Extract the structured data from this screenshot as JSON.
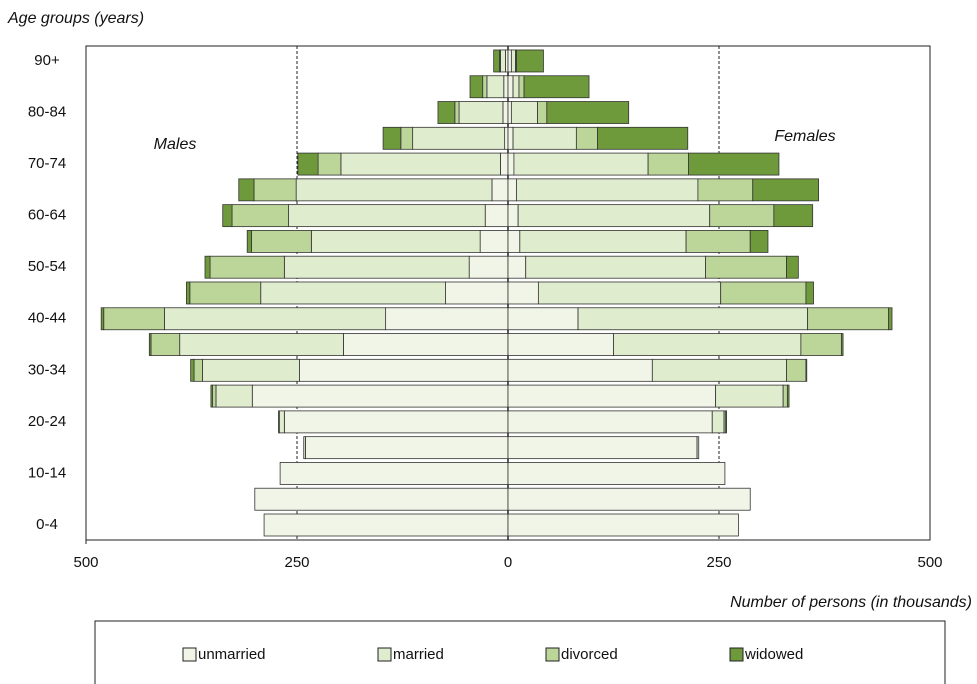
{
  "chart_data": {
    "type": "pyramid",
    "y_axis_label": "Age groups (years)",
    "x_axis_label": "Number of persons (in thousands)",
    "left_label": "Males",
    "right_label": "Females",
    "categories": [
      "0-4",
      null,
      "10-14",
      null,
      "20-24",
      null,
      "30-34",
      null,
      "40-44",
      null,
      "50-54",
      null,
      "60-64",
      null,
      "70-74",
      null,
      "80-84",
      null,
      "90+"
    ],
    "xlim": [
      -500,
      500
    ],
    "xticks": [
      {
        "value": -500,
        "label": "500"
      },
      {
        "value": -250,
        "label": "250"
      },
      0,
      250,
      500
    ],
    "grid": true,
    "series": [
      {
        "name": "unmarried",
        "color": "#f1f5e7",
        "males": [
          289,
          300,
          270,
          240,
          265,
          303,
          247,
          195,
          145,
          74,
          46,
          33,
          27,
          19,
          9,
          4,
          6,
          5,
          3
        ],
        "females": [
          273,
          287,
          257,
          224,
          242,
          246,
          171,
          125,
          83,
          36,
          21,
          14,
          12,
          10,
          7,
          6,
          4,
          6,
          4
        ]
      },
      {
        "name": "married",
        "color": "#e0ecce",
        "males": [
          0,
          0,
          0,
          2,
          6,
          43,
          115,
          194,
          262,
          219,
          219,
          200,
          233,
          232,
          189,
          109,
          52,
          20,
          6
        ],
        "females": [
          0,
          0,
          0,
          2,
          14,
          80,
          159,
          222,
          272,
          216,
          213,
          197,
          227,
          215,
          159,
          75,
          31,
          7,
          5
        ]
      },
      {
        "name": "divorced",
        "color": "#bcd598",
        "males": [
          0,
          0,
          0,
          0,
          1,
          4,
          10,
          34,
          72,
          84,
          88,
          71,
          67,
          50,
          27,
          14,
          5,
          5,
          1
        ],
        "females": [
          0,
          0,
          0,
          0,
          2,
          5,
          23,
          48,
          96,
          101,
          96,
          76,
          76,
          65,
          48,
          25,
          11,
          6,
          1
        ]
      },
      {
        "name": "widowed",
        "color": "#6f9a3c",
        "males": [
          0,
          0,
          0,
          0,
          0,
          2,
          4,
          2,
          3,
          4,
          6,
          5,
          11,
          18,
          24,
          21,
          20,
          15,
          7
        ],
        "females": [
          0,
          0,
          0,
          0,
          1,
          2,
          1,
          2,
          4,
          9,
          14,
          21,
          46,
          78,
          107,
          107,
          97,
          77,
          32
        ]
      }
    ]
  }
}
